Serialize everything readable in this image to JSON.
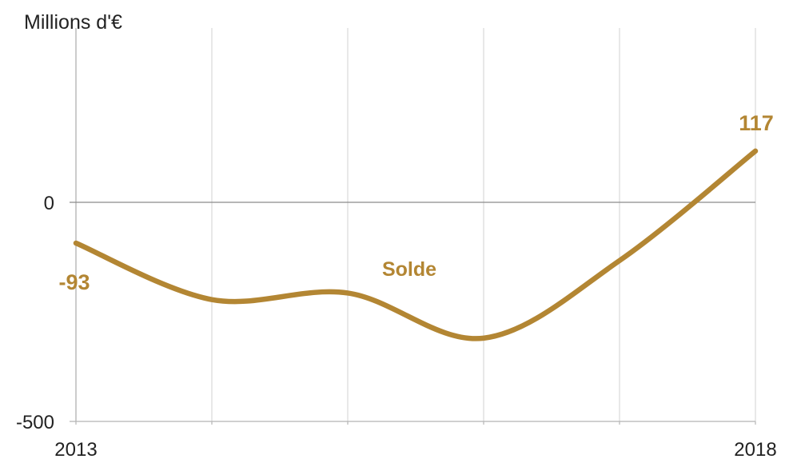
{
  "chart_data": {
    "type": "line",
    "title": "",
    "ylabel": "Millions d'€",
    "xlabel": "",
    "x": [
      2013,
      2014,
      2015,
      2016,
      2017,
      2018
    ],
    "x_tick_labels": [
      "2013",
      "2018"
    ],
    "y_tick_labels": [
      "0",
      "-500"
    ],
    "ylim": [
      -500,
      400
    ],
    "xlim": [
      2013,
      2018
    ],
    "grid": "vertical",
    "series": [
      {
        "name": "Solde",
        "values": [
          -93,
          -222,
          -207,
          -310,
          -133,
          117
        ]
      }
    ],
    "data_labels": [
      {
        "text": "-93",
        "x": 2013,
        "value": -93
      },
      {
        "text": "117",
        "x": 2018,
        "value": 117
      }
    ],
    "colors": {
      "line": "#B38633",
      "label": "#B38633",
      "grid": "#d9d9d9",
      "axis": "#b5b5b5",
      "text": "#222222"
    }
  }
}
